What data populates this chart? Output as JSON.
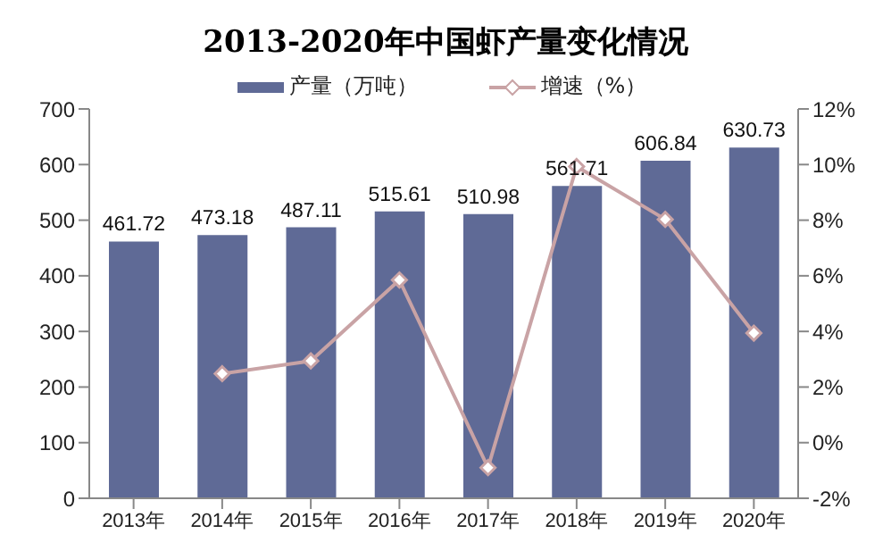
{
  "chart_data": {
    "type": "bar",
    "title": "2013-2020年中国虾产量变化情况",
    "categories": [
      "2013年",
      "2014年",
      "2015年",
      "2016年",
      "2017年",
      "2018年",
      "2019年",
      "2020年"
    ],
    "series": [
      {
        "name": "产量（万吨）",
        "color": "#5f6a96",
        "values": [
          461.72,
          473.18,
          487.11,
          515.61,
          510.98,
          561.71,
          606.84,
          630.73
        ]
      },
      {
        "name": "增速（%）",
        "type": "line",
        "axis": "y2",
        "color": "#c9a3a5",
        "marker": "diamond",
        "values": [
          null,
          2.48,
          2.94,
          5.85,
          -0.9,
          9.93,
          8.03,
          3.94
        ]
      }
    ],
    "ylim": [
      0,
      700
    ],
    "yticks": [
      0,
      100,
      200,
      300,
      400,
      500,
      600,
      700
    ],
    "y2lim": [
      -2,
      12
    ],
    "y2ticks": [
      {
        "value": -2,
        "label": "-2%"
      },
      {
        "value": 0,
        "label": "0%"
      },
      {
        "value": 2,
        "label": "2%"
      },
      {
        "value": 4,
        "label": "4%"
      },
      {
        "value": 6,
        "label": "6%"
      },
      {
        "value": 8,
        "label": "8%"
      },
      {
        "value": 10,
        "label": "10%"
      },
      {
        "value": 12,
        "label": "12%"
      }
    ],
    "value_labels": [
      "461.72",
      "473.18",
      "487.11",
      "515.61",
      "510.98",
      "561.71",
      "606.84",
      "630.73"
    ],
    "legend": "top",
    "grid": false
  }
}
